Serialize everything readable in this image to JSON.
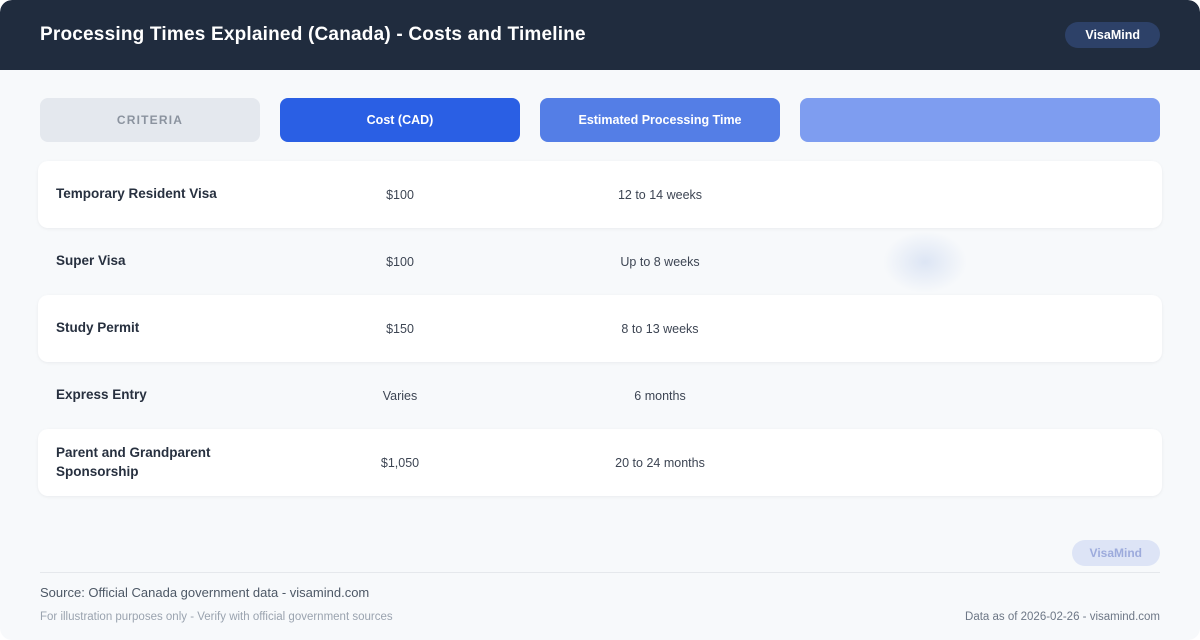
{
  "header": {
    "title": "Processing Times Explained (Canada) - Costs and Timeline",
    "brand": "VisaMind"
  },
  "chart_data": {
    "type": "table",
    "title": "Processing Times Explained (Canada) - Costs and Timeline",
    "columns": [
      "CRITERIA",
      "Cost (CAD)",
      "Estimated Processing Time",
      ""
    ],
    "rows": [
      [
        "Temporary Resident Visa",
        "$100",
        "12 to 14 weeks"
      ],
      [
        "Super Visa",
        "$100",
        "Up to 8 weeks"
      ],
      [
        "Study Permit",
        "$150",
        "8 to 13 weeks"
      ],
      [
        "Express Entry",
        "Varies",
        "6 months"
      ],
      [
        "Parent and Grandparent Sponsorship",
        "$1,050",
        "20 to 24 months"
      ]
    ]
  },
  "watermark": "VisaMind",
  "footer": {
    "source": "Source: Official Canada government data - visamind.com",
    "disclaimer": "For illustration purposes only - Verify with official government sources",
    "data_as_of": "Data as of 2026-02-26 - visamind.com"
  },
  "colors": {
    "header_bg": "#202c3e",
    "brand_badge_bg": "#2d4168",
    "col_criteria_bg": "#e4e8ee",
    "col_criteria_text": "#8b939f",
    "col_cost_bg": "#2a5fe4",
    "col_time_bg": "#547ee6",
    "col_extra_bg": "#7e9df0",
    "page_bg": "#f7f9fb"
  }
}
